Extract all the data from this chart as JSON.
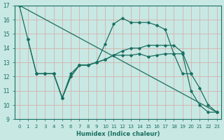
{
  "background_color": "#c8e8e4",
  "grid_color": "#b0d8d4",
  "line_color": "#1a7060",
  "xlabel": "Humidex (Indice chaleur)",
  "xlim": [
    -0.5,
    23.5
  ],
  "ylim": [
    9,
    17
  ],
  "yticks": [
    9,
    10,
    11,
    12,
    13,
    14,
    15,
    16,
    17
  ],
  "xticks": [
    0,
    1,
    2,
    3,
    4,
    5,
    6,
    7,
    8,
    9,
    10,
    11,
    12,
    13,
    14,
    15,
    16,
    17,
    18,
    19,
    20,
    21,
    22,
    23
  ],
  "line1_x": [
    0,
    1,
    2,
    3,
    4,
    5,
    6,
    7,
    8,
    9,
    10,
    11,
    12,
    13,
    14,
    15,
    16,
    17,
    18,
    19,
    20,
    21,
    22,
    23
  ],
  "line1_y": [
    17.0,
    14.6,
    12.2,
    12.2,
    12.2,
    10.5,
    12.0,
    12.8,
    12.8,
    13.0,
    14.3,
    15.7,
    16.1,
    15.8,
    15.8,
    15.8,
    15.6,
    15.3,
    13.6,
    13.6,
    11.0,
    10.0,
    9.5,
    9.5
  ],
  "line2_x": [
    1,
    2,
    3,
    4,
    5,
    6,
    7,
    8,
    9,
    10,
    11,
    12,
    13,
    14,
    15,
    16,
    17,
    18,
    19,
    20,
    21,
    22,
    23
  ],
  "line2_y": [
    14.6,
    12.2,
    12.2,
    12.2,
    10.5,
    12.0,
    12.8,
    12.8,
    13.0,
    13.2,
    13.5,
    13.5,
    13.5,
    13.6,
    13.4,
    13.5,
    13.6,
    13.6,
    12.2,
    12.2,
    11.2,
    10.0,
    9.5
  ],
  "line3_x": [
    2,
    3,
    4,
    5,
    6,
    7,
    8,
    9,
    10,
    11,
    12,
    13,
    14,
    15,
    16,
    17,
    18,
    19,
    20
  ],
  "line3_y": [
    12.2,
    12.2,
    12.2,
    10.5,
    12.2,
    12.8,
    12.8,
    13.0,
    13.2,
    13.5,
    13.8,
    14.0,
    14.0,
    14.2,
    14.2,
    14.2,
    14.2,
    13.7,
    12.2
  ],
  "line4_x": [
    0,
    23
  ],
  "line4_y": [
    17.0,
    9.5
  ]
}
